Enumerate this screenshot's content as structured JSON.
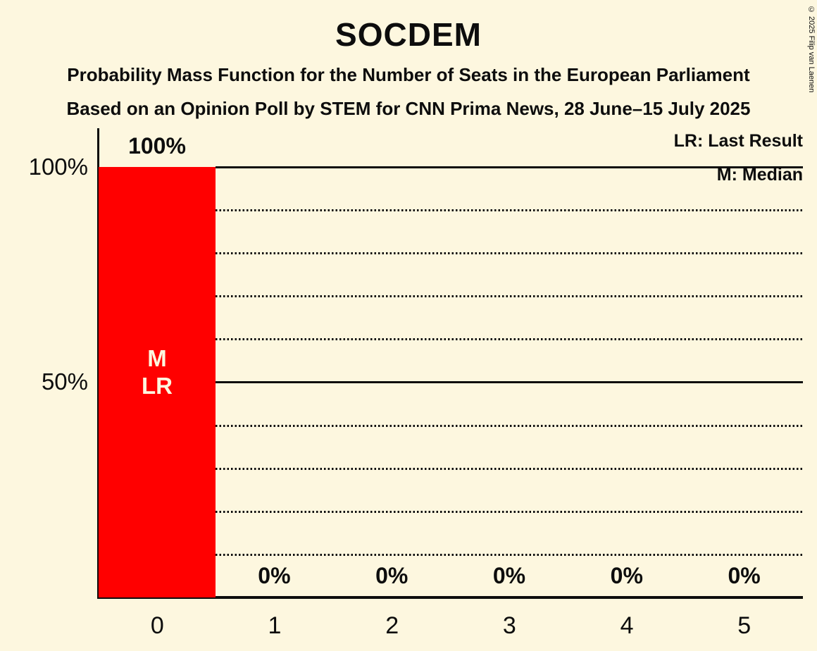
{
  "title": "SOCDEM",
  "subtitle1": "Probability Mass Function for the Number of Seats in the European Parliament",
  "subtitle2": "Based on an Opinion Poll by STEM for CNN Prima News, 28 June–15 July 2025",
  "copyright": "© 2025 Filip van Laenen",
  "legend": {
    "last_result": "LR: Last Result",
    "median": "M: Median"
  },
  "colors": {
    "background": "#FDF7DF",
    "bar": "#FF0000",
    "text": "#0D0D0D"
  },
  "y_axis": {
    "tick_100": "100%",
    "tick_50": "50%"
  },
  "chart_data": {
    "type": "bar",
    "title": "SOCDEM",
    "categories": [
      "0",
      "1",
      "2",
      "3",
      "4",
      "5"
    ],
    "values": [
      100,
      0,
      0,
      0,
      0,
      0
    ],
    "value_labels": [
      "100%",
      "0%",
      "0%",
      "0%",
      "0%",
      "0%"
    ],
    "bar_annotations": [
      "M",
      "LR"
    ],
    "annotated_bar": "0",
    "median_seats": 0,
    "last_result_seats": 0,
    "xlabel": "",
    "ylabel": "",
    "ylim": [
      0,
      100
    ],
    "y_tick_labels": [
      "100%",
      "50%"
    ],
    "solid_gridlines_percent": [
      100,
      50
    ],
    "dotted_gridlines_percent": [
      90,
      80,
      70,
      60,
      40,
      30,
      20,
      10
    ],
    "bar_color": "#FF0000",
    "legend_position": "top-right",
    "grid": true
  }
}
